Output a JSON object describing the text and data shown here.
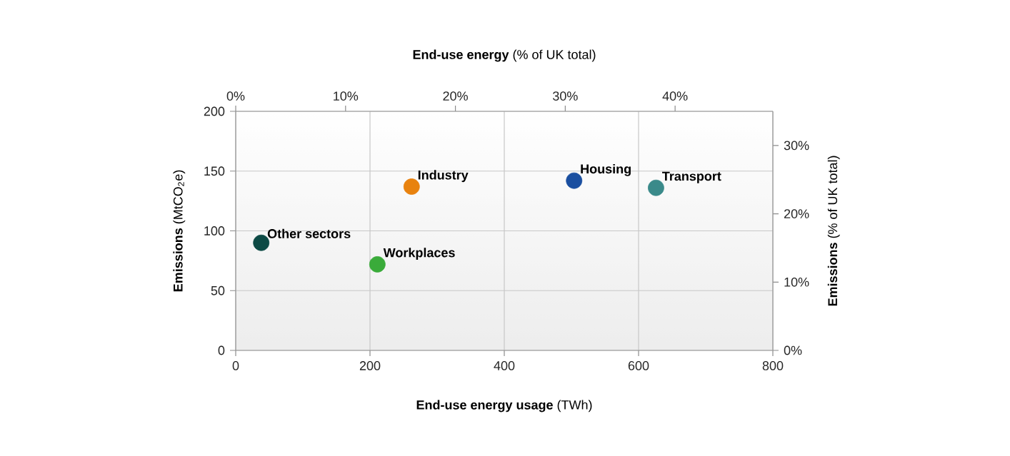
{
  "chart_data": {
    "type": "scatter",
    "xlabel": "**End-use energy usage** (TWh)",
    "ylabel": "**Emissions** (MtCO$_{2}$e)",
    "x2label": "**End-use energy** (% of UK total)",
    "y2label": "**Emissions** (% of UK total)",
    "xlim": [
      0,
      800
    ],
    "xticks": [
      0,
      200,
      400,
      600,
      800
    ],
    "ylim": [
      0,
      200
    ],
    "yticks": [
      0,
      50,
      100,
      150,
      200
    ],
    "x2lim": [
      0,
      48.9
    ],
    "x2ticks": [
      {
        "value": 0,
        "label": "0%"
      },
      {
        "value": 10,
        "label": "10%"
      },
      {
        "value": 20,
        "label": "20%"
      },
      {
        "value": 30,
        "label": "30%"
      },
      {
        "value": 40,
        "label": "40%"
      }
    ],
    "y2lim": [
      0,
      35
    ],
    "y2ticks": [
      {
        "value": 0,
        "label": "0%"
      },
      {
        "value": 10,
        "label": "10%"
      },
      {
        "value": 20,
        "label": "20%"
      },
      {
        "value": 30,
        "label": "30%"
      }
    ],
    "grid": true,
    "series": [
      {
        "name": "Other sectors",
        "color": "#0d4a45",
        "x": [
          38
        ],
        "values": [
          90
        ]
      },
      {
        "name": "Workplaces",
        "color": "#3aab3a",
        "x": [
          211
        ],
        "values": [
          72
        ]
      },
      {
        "name": "Industry",
        "color": "#e8820e",
        "x": [
          262
        ],
        "values": [
          137
        ]
      },
      {
        "name": "Housing",
        "color": "#1a4fa0",
        "x": [
          504
        ],
        "values": [
          142
        ]
      },
      {
        "name": "Transport",
        "color": "#3a8a8a",
        "x": [
          626
        ],
        "values": [
          136
        ]
      }
    ]
  }
}
